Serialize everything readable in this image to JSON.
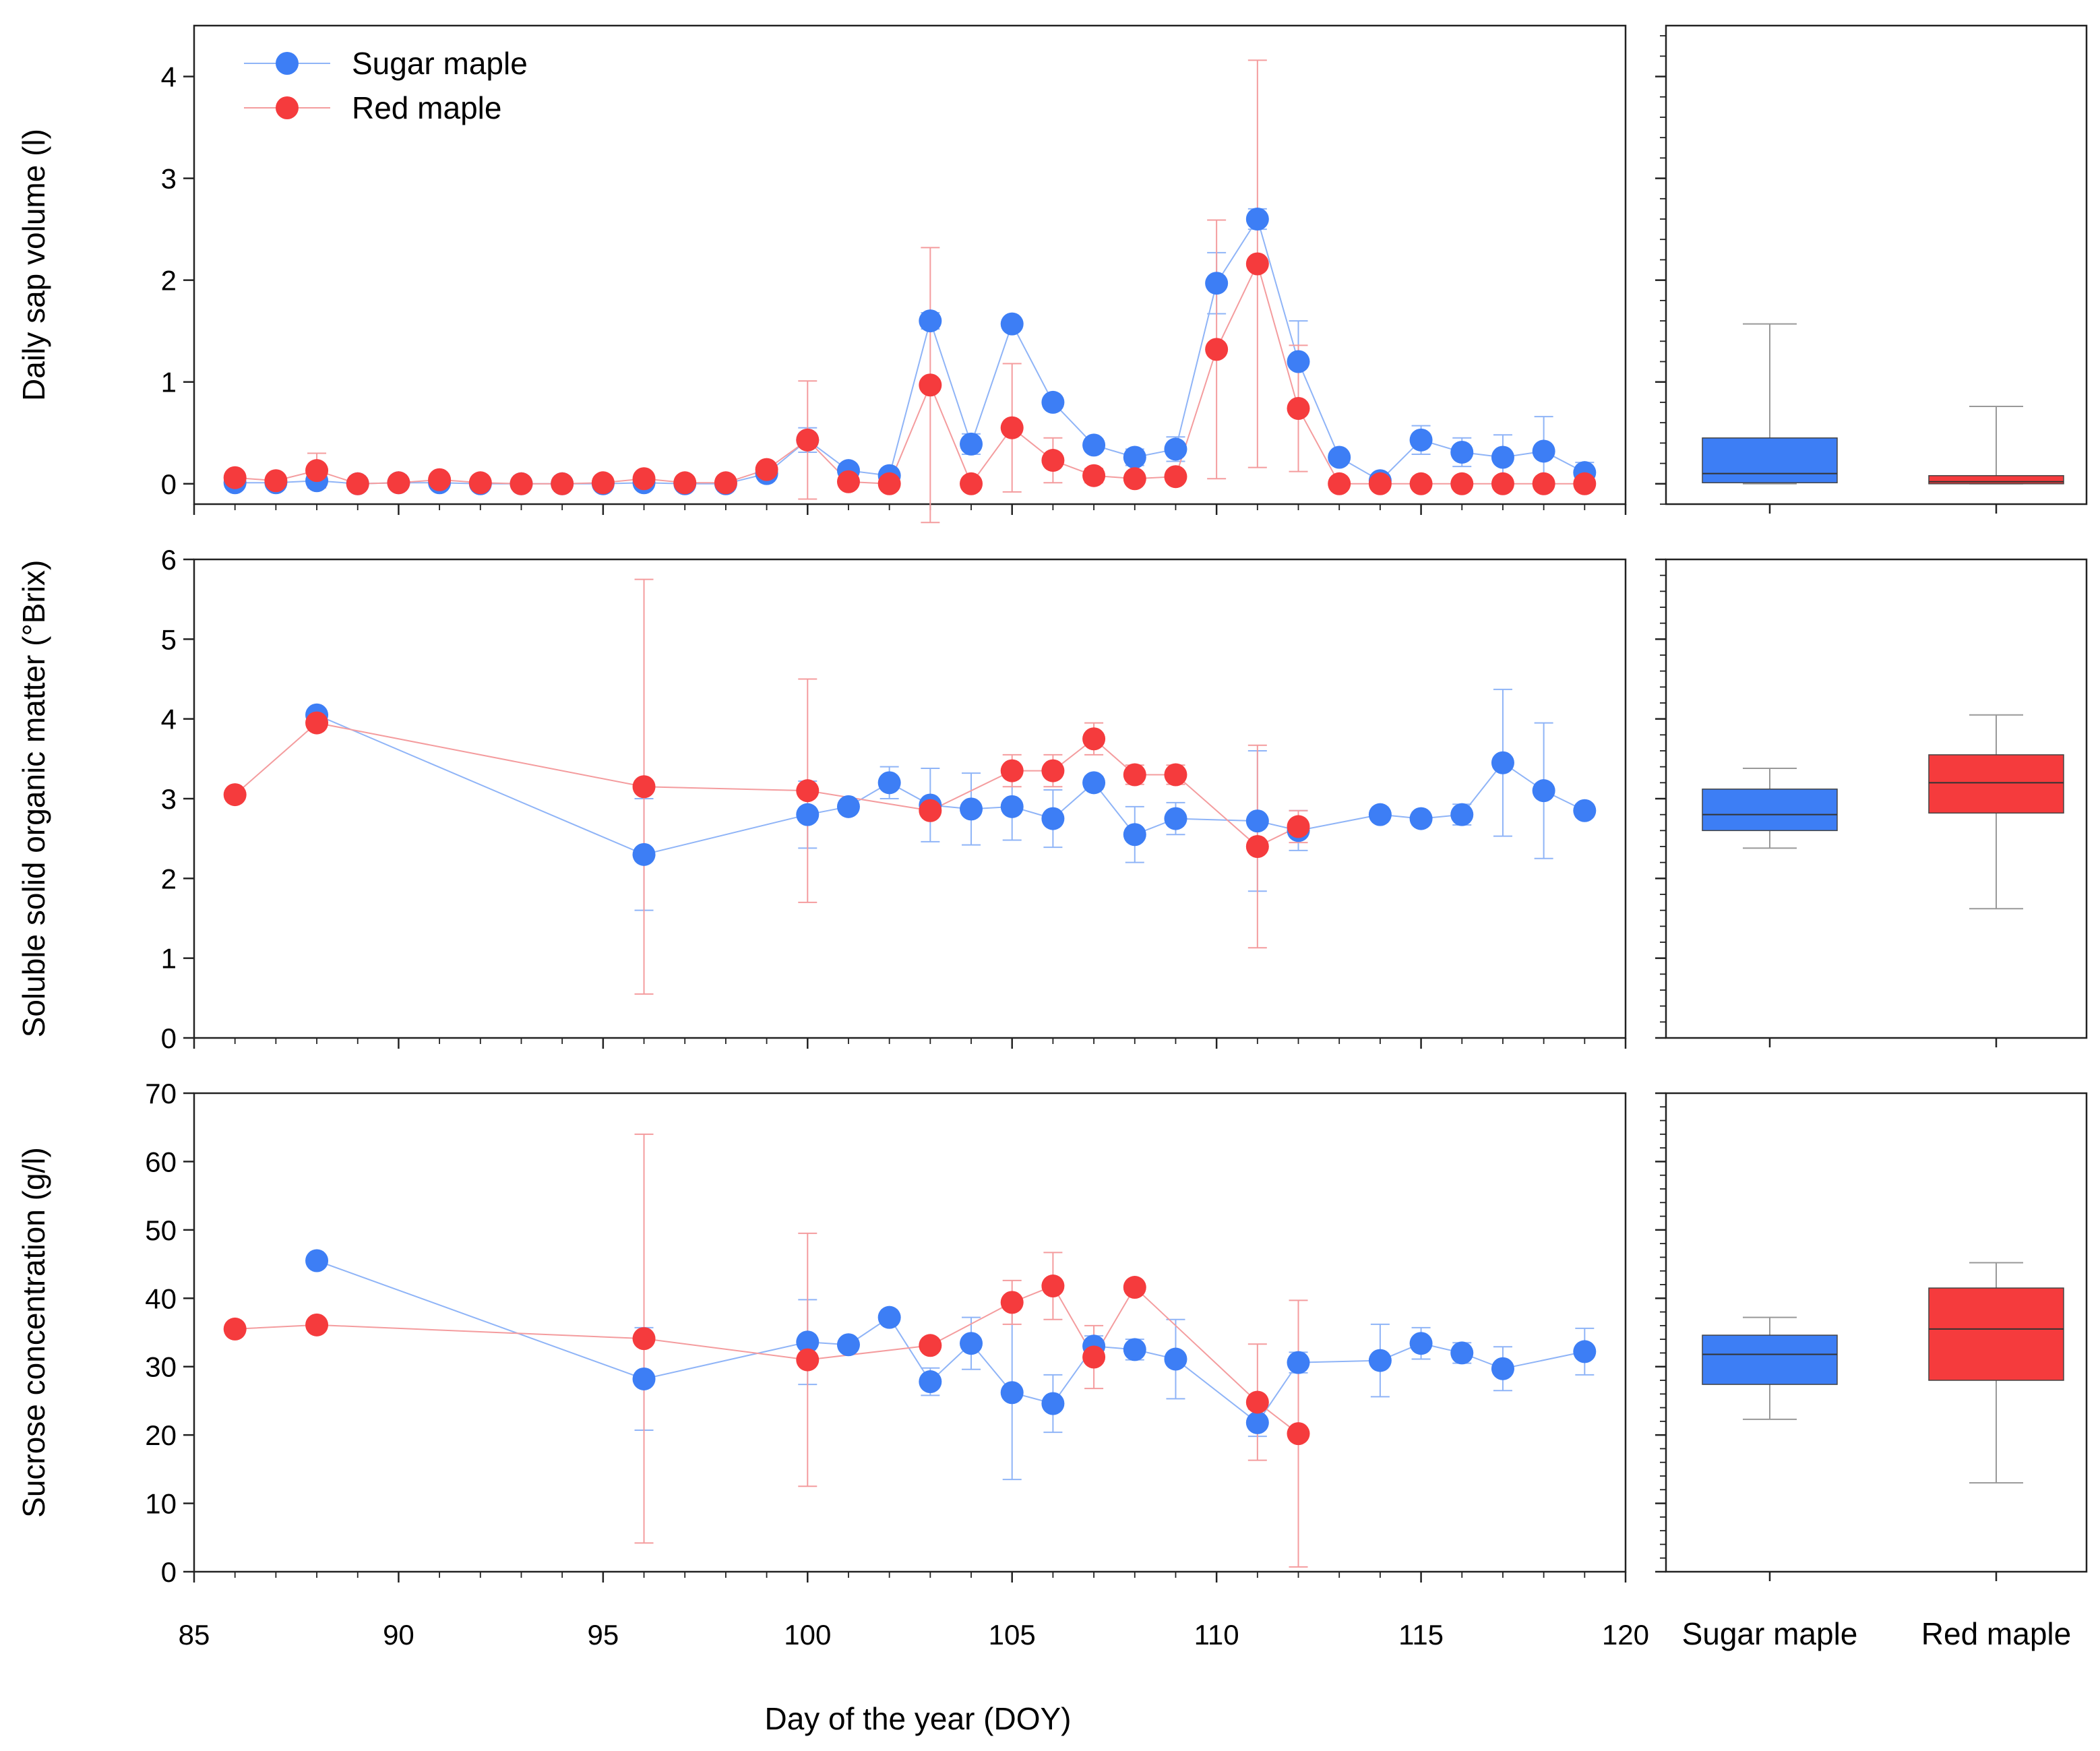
{
  "colors": {
    "sugar": "#3d7ef5",
    "red": "#f53b3d",
    "sugar_line": "#8fb4f7",
    "red_line": "#f49c9e"
  },
  "legend": [
    {
      "name": "Sugar maple",
      "color": "#3d7ef5"
    },
    {
      "name": "Red maple",
      "color": "#f53b3d"
    }
  ],
  "x_axis": {
    "title": "Day of the year (DOY)",
    "ticks": [
      "85",
      "90",
      "95",
      "100",
      "105",
      "110",
      "115",
      "120"
    ],
    "range": [
      85,
      120
    ]
  },
  "box_categories": [
    "Sugar maple",
    "Red maple"
  ],
  "chart_data": [
    {
      "type": "line",
      "title": "",
      "xlabel": "Day of the year (DOY)",
      "ylabel": "Daily sap volume (l)",
      "xlim": [
        85,
        120
      ],
      "ylim": [
        -0.2,
        4.5
      ],
      "yticks": [
        "0",
        "1",
        "2",
        "3",
        "4"
      ],
      "series": [
        {
          "name": "Sugar maple",
          "points": [
            {
              "x": 86,
              "y": 0.01,
              "err": 0
            },
            {
              "x": 87,
              "y": 0.01,
              "err": 0
            },
            {
              "x": 88,
              "y": 0.03,
              "err": 0.05
            },
            {
              "x": 89,
              "y": 0.0,
              "err": 0
            },
            {
              "x": 90,
              "y": 0.01,
              "err": 0
            },
            {
              "x": 91,
              "y": 0.01,
              "err": 0
            },
            {
              "x": 92,
              "y": 0.0,
              "err": 0
            },
            {
              "x": 93,
              "y": 0.0,
              "err": 0
            },
            {
              "x": 94,
              "y": 0.0,
              "err": 0
            },
            {
              "x": 95,
              "y": 0.0,
              "err": 0
            },
            {
              "x": 96,
              "y": 0.01,
              "err": 0
            },
            {
              "x": 97,
              "y": 0.0,
              "err": 0
            },
            {
              "x": 98,
              "y": 0.0,
              "err": 0
            },
            {
              "x": 99,
              "y": 0.1,
              "err": 0.04
            },
            {
              "x": 100,
              "y": 0.43,
              "err": 0.12
            },
            {
              "x": 101,
              "y": 0.13,
              "err": 0.05
            },
            {
              "x": 102,
              "y": 0.08,
              "err": 0.03
            },
            {
              "x": 103,
              "y": 1.6,
              "err": 0.08
            },
            {
              "x": 104,
              "y": 0.39,
              "err": 0.1
            },
            {
              "x": 105,
              "y": 1.57,
              "err": 0.03
            },
            {
              "x": 106,
              "y": 0.8,
              "err": 0.05
            },
            {
              "x": 107,
              "y": 0.38,
              "err": 0.06
            },
            {
              "x": 108,
              "y": 0.26,
              "err": 0.08
            },
            {
              "x": 109,
              "y": 0.34,
              "err": 0.12
            },
            {
              "x": 110,
              "y": 1.97,
              "err": 0.3
            },
            {
              "x": 111,
              "y": 2.6,
              "err": 0.1
            },
            {
              "x": 112,
              "y": 1.2,
              "err": 0.4
            },
            {
              "x": 113,
              "y": 0.26,
              "err": 0.05
            },
            {
              "x": 114,
              "y": 0.03,
              "err": 0.02
            },
            {
              "x": 115,
              "y": 0.43,
              "err": 0.14
            },
            {
              "x": 116,
              "y": 0.31,
              "err": 0.14
            },
            {
              "x": 117,
              "y": 0.26,
              "err": 0.22
            },
            {
              "x": 118,
              "y": 0.32,
              "err": 0.34
            },
            {
              "x": 119,
              "y": 0.11,
              "err": 0.1
            }
          ]
        },
        {
          "name": "Red maple",
          "points": [
            {
              "x": 86,
              "y": 0.06,
              "err": 0.05
            },
            {
              "x": 87,
              "y": 0.03,
              "err": 0.02
            },
            {
              "x": 88,
              "y": 0.13,
              "err": 0.17
            },
            {
              "x": 89,
              "y": 0.0,
              "err": 0
            },
            {
              "x": 90,
              "y": 0.01,
              "err": 0
            },
            {
              "x": 91,
              "y": 0.04,
              "err": 0.03
            },
            {
              "x": 92,
              "y": 0.01,
              "err": 0
            },
            {
              "x": 93,
              "y": 0.0,
              "err": 0
            },
            {
              "x": 94,
              "y": 0.0,
              "err": 0
            },
            {
              "x": 95,
              "y": 0.01,
              "err": 0
            },
            {
              "x": 96,
              "y": 0.05,
              "err": 0.04
            },
            {
              "x": 97,
              "y": 0.01,
              "err": 0
            },
            {
              "x": 98,
              "y": 0.01,
              "err": 0
            },
            {
              "x": 99,
              "y": 0.14,
              "err": 0.05
            },
            {
              "x": 100,
              "y": 0.43,
              "err": 0.58
            },
            {
              "x": 101,
              "y": 0.02,
              "err": 0
            },
            {
              "x": 102,
              "y": 0.0,
              "err": 0
            },
            {
              "x": 103,
              "y": 0.97,
              "err": 1.35
            },
            {
              "x": 104,
              "y": 0.0,
              "err": 0
            },
            {
              "x": 105,
              "y": 0.55,
              "err": 0.63
            },
            {
              "x": 106,
              "y": 0.23,
              "err": 0.22
            },
            {
              "x": 107,
              "y": 0.08,
              "err": 0.07
            },
            {
              "x": 108,
              "y": 0.05,
              "err": 0.03
            },
            {
              "x": 109,
              "y": 0.07,
              "err": 0.06
            },
            {
              "x": 110,
              "y": 1.32,
              "err": 1.27
            },
            {
              "x": 111,
              "y": 2.16,
              "err": 2.0
            },
            {
              "x": 112,
              "y": 0.74,
              "err": 0.62
            },
            {
              "x": 113,
              "y": 0.0,
              "err": 0
            },
            {
              "x": 114,
              "y": 0.0,
              "err": 0
            },
            {
              "x": 115,
              "y": 0.0,
              "err": 0
            },
            {
              "x": 116,
              "y": 0.0,
              "err": 0
            },
            {
              "x": 117,
              "y": 0.0,
              "err": 0
            },
            {
              "x": 118,
              "y": 0.0,
              "err": 0
            },
            {
              "x": 119,
              "y": 0.0,
              "err": 0
            }
          ]
        }
      ],
      "boxplot": {
        "ylim": [
          -0.2,
          4.5
        ],
        "boxes": [
          {
            "name": "Sugar maple",
            "whisker_low": 0.0,
            "q1": 0.01,
            "median": 0.1,
            "q3": 0.45,
            "whisker_high": 1.57
          },
          {
            "name": "Red maple",
            "whisker_low": 0.0,
            "q1": 0.0,
            "median": 0.02,
            "q3": 0.08,
            "whisker_high": 0.76
          }
        ]
      }
    },
    {
      "type": "line",
      "title": "",
      "xlabel": "Day of the year (DOY)",
      "ylabel": "Soluble solid organic matter (°Brix)",
      "xlim": [
        85,
        120
      ],
      "ylim": [
        0,
        6
      ],
      "yticks": [
        "0",
        "1",
        "2",
        "3",
        "4",
        "5",
        "6"
      ],
      "series": [
        {
          "name": "Sugar maple",
          "points": [
            {
              "x": 88,
              "y": 4.05,
              "err": 0
            },
            {
              "x": 96,
              "y": 2.3,
              "err": 0.7
            },
            {
              "x": 100,
              "y": 2.8,
              "err": 0.42
            },
            {
              "x": 101,
              "y": 2.9,
              "err": 0.05
            },
            {
              "x": 102,
              "y": 3.2,
              "err": 0.2
            },
            {
              "x": 103,
              "y": 2.92,
              "err": 0.46
            },
            {
              "x": 104,
              "y": 2.87,
              "err": 0.45
            },
            {
              "x": 105,
              "y": 2.9,
              "err": 0.42
            },
            {
              "x": 106,
              "y": 2.75,
              "err": 0.36
            },
            {
              "x": 107,
              "y": 3.2,
              "err": 0.08
            },
            {
              "x": 108,
              "y": 2.55,
              "err": 0.35
            },
            {
              "x": 109,
              "y": 2.75,
              "err": 0.2
            },
            {
              "x": 111,
              "y": 2.72,
              "err": 0.88
            },
            {
              "x": 112,
              "y": 2.6,
              "err": 0.25
            },
            {
              "x": 114,
              "y": 2.8,
              "err": 0.05
            },
            {
              "x": 115,
              "y": 2.75,
              "err": 0.08
            },
            {
              "x": 116,
              "y": 2.8,
              "err": 0.13
            },
            {
              "x": 117,
              "y": 3.45,
              "err": 0.92
            },
            {
              "x": 118,
              "y": 3.1,
              "err": 0.85
            },
            {
              "x": 119,
              "y": 2.85,
              "err": 0.08
            }
          ]
        },
        {
          "name": "Red maple",
          "points": [
            {
              "x": 86,
              "y": 3.05,
              "err": 0
            },
            {
              "x": 88,
              "y": 3.95,
              "err": 0
            },
            {
              "x": 96,
              "y": 3.15,
              "err": 2.6
            },
            {
              "x": 100,
              "y": 3.1,
              "err": 1.4
            },
            {
              "x": 103,
              "y": 2.85,
              "err": 0.05
            },
            {
              "x": 105,
              "y": 3.35,
              "err": 0.2
            },
            {
              "x": 106,
              "y": 3.35,
              "err": 0.2
            },
            {
              "x": 107,
              "y": 3.75,
              "err": 0.2
            },
            {
              "x": 108,
              "y": 3.3,
              "err": 0.12
            },
            {
              "x": 109,
              "y": 3.3,
              "err": 0.12
            },
            {
              "x": 111,
              "y": 2.4,
              "err": 1.27
            },
            {
              "x": 112,
              "y": 2.65,
              "err": 0.2
            }
          ]
        }
      ],
      "boxplot": {
        "ylim": [
          0,
          6
        ],
        "boxes": [
          {
            "name": "Sugar maple",
            "whisker_low": 2.38,
            "q1": 2.6,
            "median": 2.8,
            "q3": 3.12,
            "whisker_high": 3.38
          },
          {
            "name": "Red maple",
            "whisker_low": 1.62,
            "q1": 2.82,
            "median": 3.2,
            "q3": 3.55,
            "whisker_high": 4.05
          }
        ]
      }
    },
    {
      "type": "line",
      "title": "",
      "xlabel": "Day of the year (DOY)",
      "ylabel": "Sucrose concentration (g/l)",
      "xlim": [
        85,
        120
      ],
      "ylim": [
        0,
        70
      ],
      "yticks": [
        "0",
        "10",
        "20",
        "30",
        "40",
        "50",
        "60",
        "70"
      ],
      "series": [
        {
          "name": "Sugar maple",
          "points": [
            {
              "x": 88,
              "y": 45.5,
              "err": 0
            },
            {
              "x": 96,
              "y": 28.2,
              "err": 7.5
            },
            {
              "x": 100,
              "y": 33.6,
              "err": 6.2
            },
            {
              "x": 101,
              "y": 33.2,
              "err": 0
            },
            {
              "x": 102,
              "y": 37.2,
              "err": 0
            },
            {
              "x": 103,
              "y": 27.8,
              "err": 2.0
            },
            {
              "x": 104,
              "y": 33.4,
              "err": 3.8
            },
            {
              "x": 105,
              "y": 26.2,
              "err": 12.7
            },
            {
              "x": 106,
              "y": 24.6,
              "err": 4.2
            },
            {
              "x": 107,
              "y": 33.0,
              "err": 1.5
            },
            {
              "x": 108,
              "y": 32.5,
              "err": 1.5
            },
            {
              "x": 109,
              "y": 31.1,
              "err": 5.8
            },
            {
              "x": 111,
              "y": 21.8,
              "err": 2.0
            },
            {
              "x": 112,
              "y": 30.6,
              "err": 1.5
            },
            {
              "x": 114,
              "y": 30.9,
              "err": 5.3
            },
            {
              "x": 115,
              "y": 33.4,
              "err": 2.3
            },
            {
              "x": 116,
              "y": 32.0,
              "err": 1.5
            },
            {
              "x": 117,
              "y": 29.7,
              "err": 3.2
            },
            {
              "x": 119,
              "y": 32.2,
              "err": 3.4
            }
          ]
        },
        {
          "name": "Red maple",
          "points": [
            {
              "x": 86,
              "y": 35.5,
              "err": 0
            },
            {
              "x": 88,
              "y": 36.1,
              "err": 0
            },
            {
              "x": 96,
              "y": 34.1,
              "err": 29.9
            },
            {
              "x": 100,
              "y": 31.0,
              "err": 18.5
            },
            {
              "x": 103,
              "y": 33.1,
              "err": 0
            },
            {
              "x": 105,
              "y": 39.4,
              "err": 3.2
            },
            {
              "x": 106,
              "y": 41.8,
              "err": 4.9
            },
            {
              "x": 107,
              "y": 31.4,
              "err": 4.6
            },
            {
              "x": 108,
              "y": 41.6,
              "err": 0.5
            },
            {
              "x": 111,
              "y": 24.8,
              "err": 8.5
            },
            {
              "x": 112,
              "y": 20.2,
              "err": 19.5
            }
          ]
        }
      ],
      "boxplot": {
        "ylim": [
          0,
          70
        ],
        "boxes": [
          {
            "name": "Sugar maple",
            "whisker_low": 22.3,
            "q1": 27.4,
            "median": 31.8,
            "q3": 34.6,
            "whisker_high": 37.2
          },
          {
            "name": "Red maple",
            "whisker_low": 13.0,
            "q1": 28.0,
            "median": 35.5,
            "q3": 41.5,
            "whisker_high": 45.2
          }
        ]
      }
    }
  ]
}
